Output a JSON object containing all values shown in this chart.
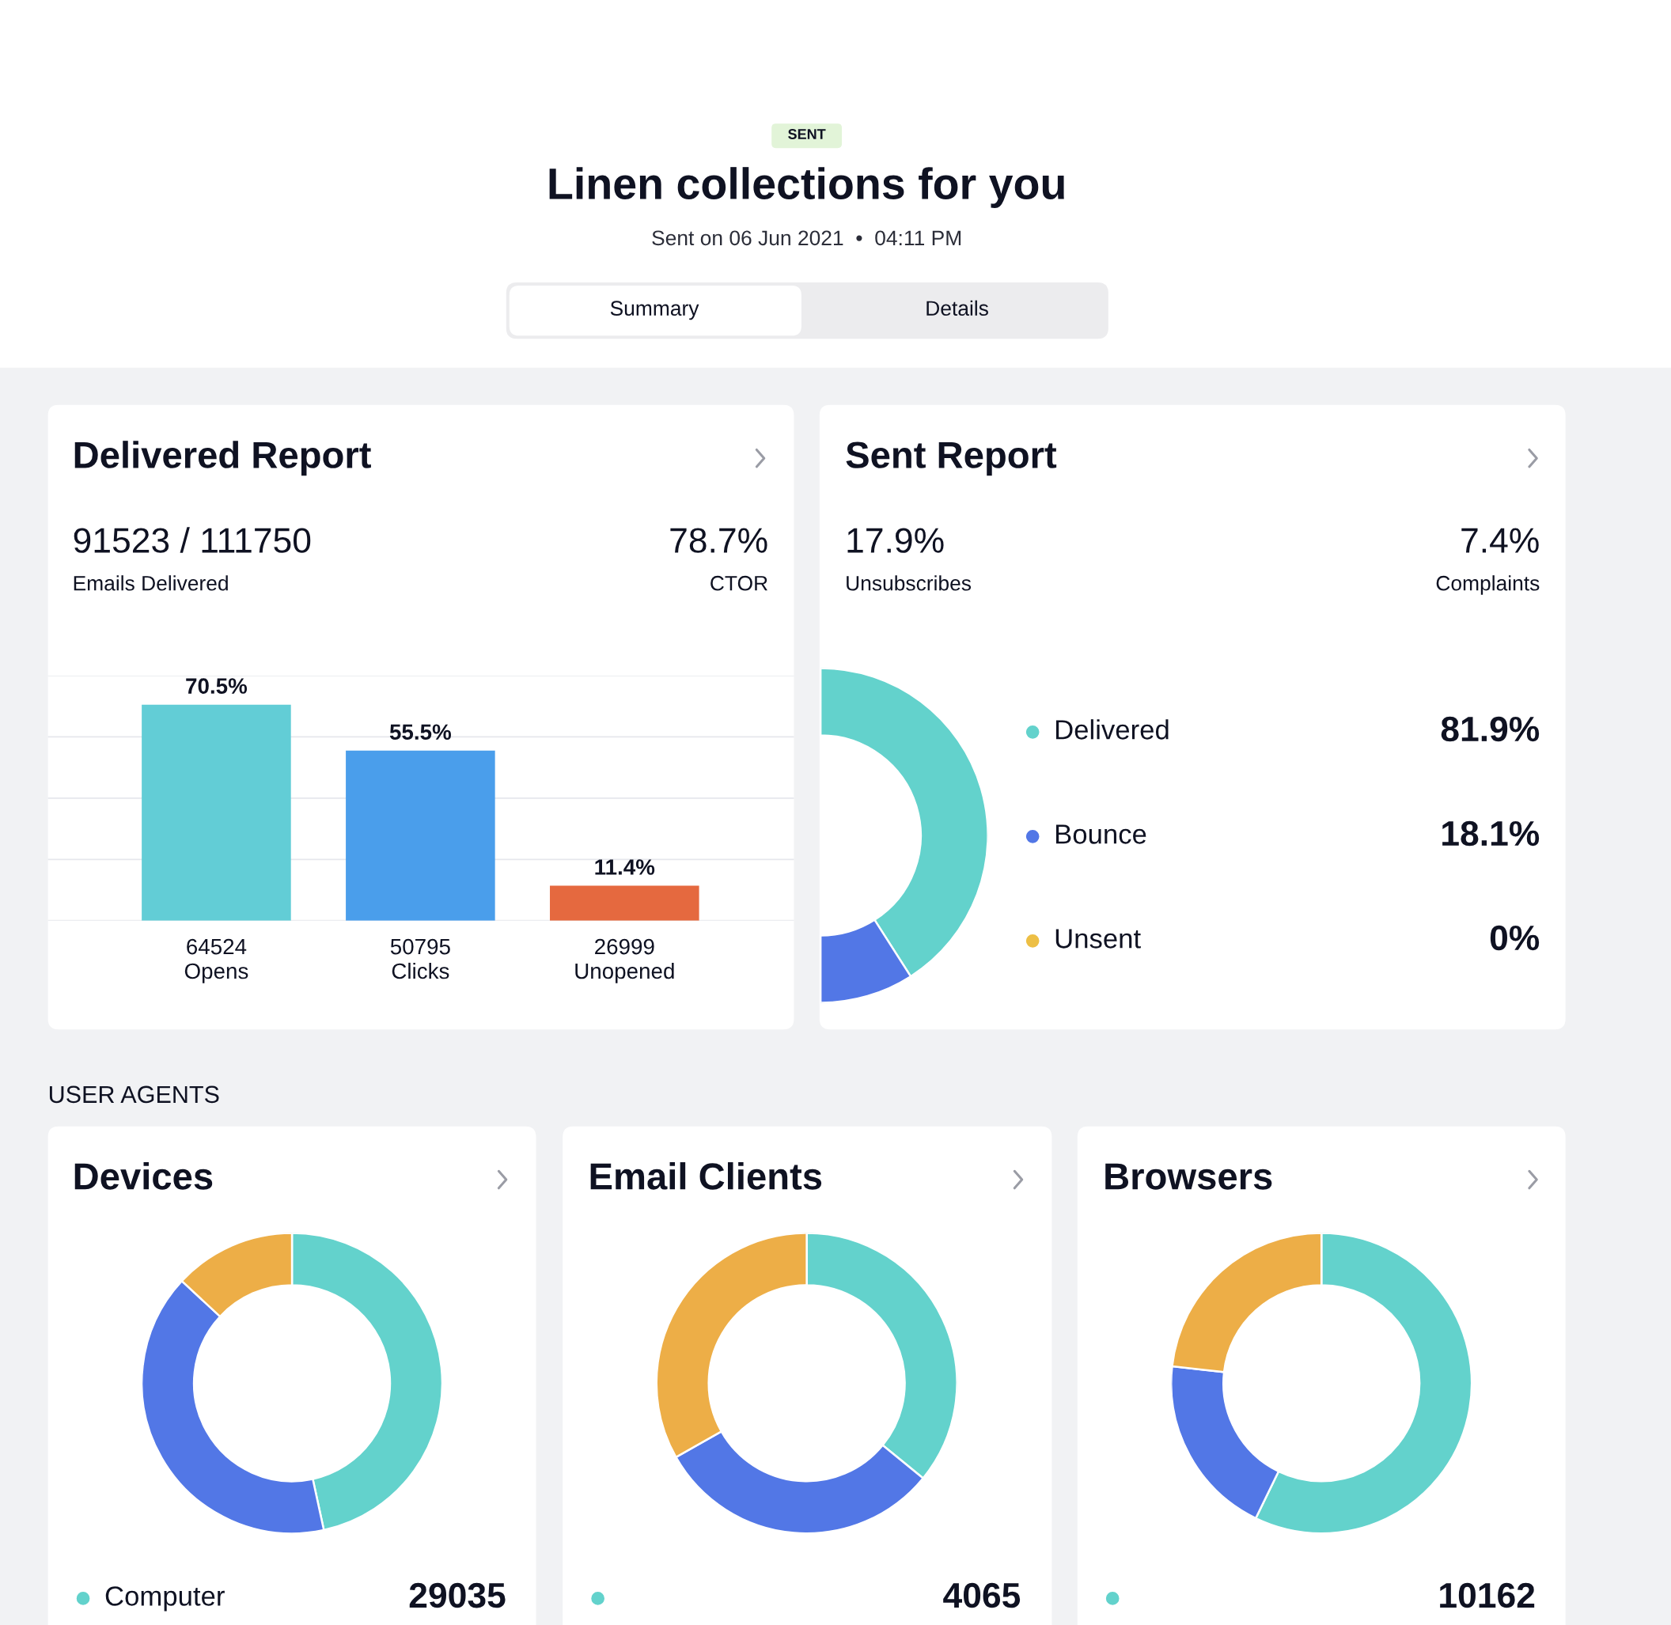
{
  "chart_data": [
    {
      "type": "other",
      "title": "Linen collections for you",
      "subtitle": "Sent on 06 Jun 2021  •  04:11 PM",
      "annotations": [
        "SENT",
        "Summary",
        "Details",
        "USER AGENTS"
      ]
    },
    {
      "type": "bar",
      "title": "Delivered Report",
      "annotations": [
        "91523 / 111750",
        "Emails Delivered",
        "78.7%",
        "CTOR"
      ],
      "categories": [
        "64524\nOpens",
        "50795\nClicks",
        "26999\nUnopened"
      ],
      "values": [
        70.5,
        55.5,
        11.4
      ],
      "colors": [
        "#62cdd6",
        "#4a9eeb",
        "#e5693f"
      ],
      "value_labels": [
        "70.5%",
        "55.5%",
        "11.4%"
      ],
      "ylim": [
        0,
        80
      ],
      "yticks": [
        {
          "value": 0,
          "label": null
        },
        {
          "value": 20,
          "label": null
        },
        {
          "value": 40,
          "label": null
        },
        {
          "value": 60,
          "label": null
        },
        {
          "value": 80,
          "label": null
        }
      ],
      "grid": "y",
      "tick_labels": "x"
    },
    {
      "type": "donut",
      "title": "Sent Report",
      "annotations": [
        "17.9%",
        "Unsubscribes",
        "7.4%",
        "Complaints"
      ],
      "categories": [
        "Delivered",
        "Bounce",
        "Unsent"
      ],
      "values": [
        81.9,
        18.1,
        0
      ],
      "colors": [
        "#63d2cc",
        "#5277e6",
        "#edbf45"
      ],
      "value_labels": [
        "81.9%",
        "18.1%",
        "0%"
      ],
      "legend": "right"
    },
    {
      "type": "donut",
      "title": "Devices",
      "categories": [
        "Computer",
        null,
        null
      ],
      "values": [
        46.6,
        40.3,
        13.1
      ],
      "colors": [
        "#63d2cc",
        "#5277e6",
        "#edae47"
      ],
      "annotations": [
        "29035"
      ],
      "legend": "bottom"
    },
    {
      "type": "donut",
      "title": "Email Clients",
      "categories": [
        null,
        null,
        null
      ],
      "values": [
        35.9,
        30.9,
        33.2
      ],
      "colors": [
        "#63d2cc",
        "#5277e6",
        "#edae47"
      ],
      "annotations": [
        "4065"
      ]
    },
    {
      "type": "donut",
      "title": "Browsers",
      "categories": [
        null,
        null,
        null
      ],
      "values": [
        57.2,
        19.6,
        23.2
      ],
      "colors": [
        "#63d2cc",
        "#5277e6",
        "#edae47"
      ],
      "annotations": [
        "10162"
      ]
    }
  ]
}
